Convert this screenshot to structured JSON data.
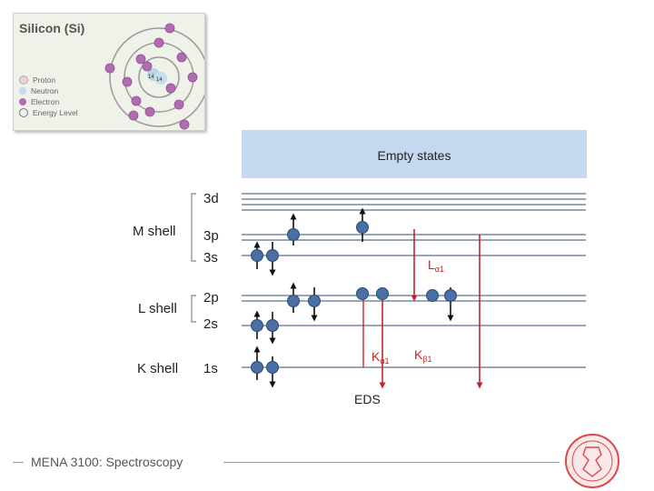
{
  "atom_card": {
    "title": "Silicon (Si)",
    "nucleus": {
      "protons": "14",
      "neutrons": "14"
    },
    "legend": [
      "Proton",
      "Neutron",
      "Electron",
      "Energy Level"
    ]
  },
  "empty_states": {
    "label": "Empty states"
  },
  "shells": [
    {
      "name": "M shell",
      "subshells": [
        "3d",
        "3p",
        "3s"
      ]
    },
    {
      "name": "L shell",
      "subshells": [
        "2p",
        "2s"
      ]
    },
    {
      "name": "K shell",
      "subshells": [
        "1s"
      ]
    }
  ],
  "transitions": {
    "l_alpha": {
      "main": "L",
      "sub": "α1"
    },
    "k_alpha": {
      "main": "K",
      "sub": "α1"
    },
    "k_beta": {
      "main": "K",
      "sub": "β1"
    }
  },
  "eds_label": "EDS",
  "footer": {
    "title": "MENA 3100: Spectroscopy"
  },
  "colors": {
    "electron": "#4a6fa5",
    "arrow_red": "#c0262c",
    "level_line": "#2f4f6f",
    "empty_box": "#c6d8ef",
    "seal": "#d94a4a"
  }
}
